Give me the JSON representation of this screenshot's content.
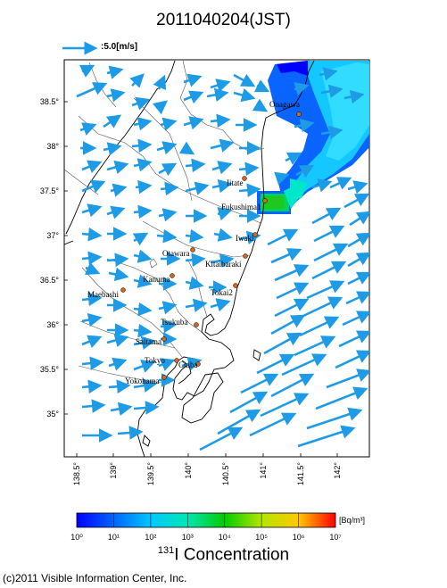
{
  "title": "2011040204(JST)",
  "reference_vector": {
    "label": ":5.0[m/s]",
    "color": "#1e9be6"
  },
  "map": {
    "latitude_labels": [
      "38.5°",
      "38°",
      "37.5°",
      "37°",
      "36.5°",
      "36°",
      "35.5°",
      "35°"
    ],
    "longitude_labels": [
      "138.5°",
      "139°",
      "139.5°",
      "140°",
      "140.5°",
      "141°",
      "141.5°",
      "142°"
    ],
    "cities": [
      {
        "name": "Onagawa"
      },
      {
        "name": "Iitate"
      },
      {
        "name": "Fukushima1"
      },
      {
        "name": "Iwaki"
      },
      {
        "name": "Otawara"
      },
      {
        "name": "Kitaibaraki"
      },
      {
        "name": "Kanuma"
      },
      {
        "name": "Tokai2"
      },
      {
        "name": "Maebashi"
      },
      {
        "name": "Tsukuba"
      },
      {
        "name": "Saitama"
      },
      {
        "name": "Tokyo"
      },
      {
        "name": "Chiba"
      },
      {
        "name": "Yokohama"
      }
    ],
    "wind_arrow_color": "#1e9be6",
    "plume_colors": [
      "#0000ff",
      "#0a64ff",
      "#14c8ff",
      "#00e6c8",
      "#00d25a",
      "#1ec81e"
    ]
  },
  "colorbar": {
    "unit": "[Bq/m³]",
    "tick_labels": [
      "10⁰",
      "10¹",
      "10²",
      "10³",
      "10⁴",
      "10⁵",
      "10⁶",
      "10⁷"
    ],
    "title_sup": "131",
    "title_main": "I Concentration",
    "colors": [
      "#0000ff",
      "#0064ff",
      "#00c8ff",
      "#00e6b4",
      "#00cc00",
      "#b4e600",
      "#ffc800",
      "#ff0000"
    ]
  },
  "credit": "(c)2011 Visible Information Center, Inc."
}
